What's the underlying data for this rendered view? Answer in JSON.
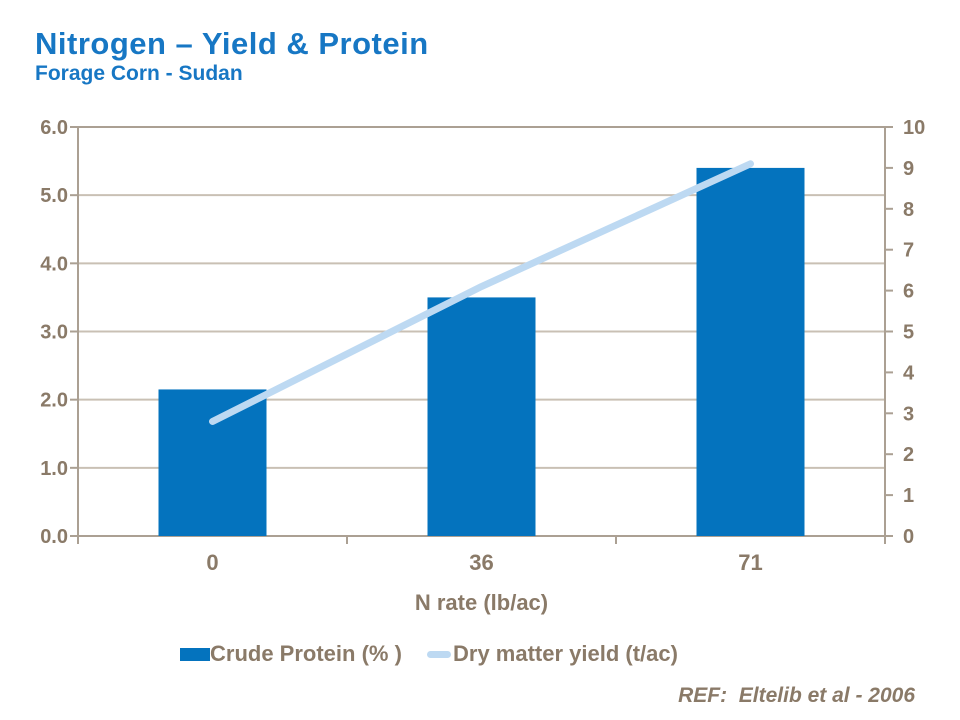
{
  "header": {
    "title": "Nitrogen – Yield & Protein",
    "subtitle": "Forage Corn - Sudan"
  },
  "chart_data": {
    "type": "bar+line combo",
    "categories": [
      "0",
      "36",
      "71"
    ],
    "series": [
      {
        "name": "Crude Protein (% )",
        "type": "bar",
        "axis": "left",
        "values": [
          2.15,
          3.5,
          5.4
        ],
        "color": "#0473BE"
      },
      {
        "name": "Dry matter yield (t/ac)",
        "type": "line",
        "axis": "right",
        "values": [
          2.8,
          6.1,
          9.1
        ],
        "color": "#BDD9F2"
      }
    ],
    "xlabel": "N rate (lb/ac)",
    "left_axis": {
      "min": 0,
      "max": 6,
      "step": 1,
      "tick_labels": [
        "0.0",
        "1.0",
        "2.0",
        "3.0",
        "4.0",
        "5.0",
        "6.0"
      ]
    },
    "right_axis": {
      "min": 0,
      "max": 10,
      "step": 1,
      "tick_labels": [
        "0",
        "1",
        "2",
        "3",
        "4",
        "5",
        "6",
        "7",
        "8",
        "9",
        "10"
      ]
    },
    "grid": true,
    "legend_position": "bottom"
  },
  "footer": {
    "ref": "REF:  Eltelib et al - 2006"
  },
  "colors": {
    "title_blue": "#1777C4",
    "text_brown": "#8A7A68",
    "gridline": "#C9C0B4",
    "plot_border": "#ABA093",
    "bar_blue": "#0473BE",
    "line_light_blue": "#BDD9F2"
  }
}
